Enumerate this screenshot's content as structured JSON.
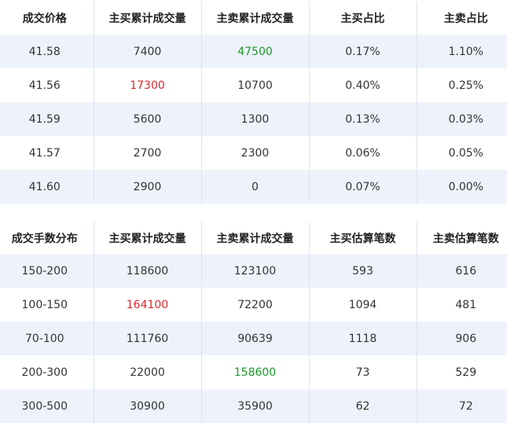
{
  "colors": {
    "up": "#e0262d",
    "down": "#1a9a2a",
    "stripe": "#eef3fb"
  },
  "price_table": {
    "headers": [
      "成交价格",
      "主买累计成交量",
      "主卖累计成交量",
      "主买占比",
      "主卖占比"
    ],
    "rows": [
      [
        "41.58",
        "7400",
        "47500",
        "0.17%",
        "1.10%"
      ],
      [
        "41.56",
        "17300",
        "10700",
        "0.40%",
        "0.25%"
      ],
      [
        "41.59",
        "5600",
        "1300",
        "0.13%",
        "0.03%"
      ],
      [
        "41.57",
        "2700",
        "2300",
        "0.06%",
        "0.05%"
      ],
      [
        "41.60",
        "2900",
        "0",
        "0.07%",
        "0.00%"
      ]
    ]
  },
  "size_table": {
    "headers": [
      "成交手数分布",
      "主买累计成交量",
      "主卖累计成交量",
      "主买估算笔数",
      "主卖估算笔数"
    ],
    "rows": [
      [
        "150-200",
        "118600",
        "123100",
        "593",
        "616"
      ],
      [
        "100-150",
        "164100",
        "72200",
        "1094",
        "481"
      ],
      [
        "70-100",
        "111760",
        "90639",
        "1118",
        "906"
      ],
      [
        "200-300",
        "22000",
        "158600",
        "73",
        "529"
      ],
      [
        "300-500",
        "30900",
        "35900",
        "62",
        "72"
      ]
    ]
  }
}
